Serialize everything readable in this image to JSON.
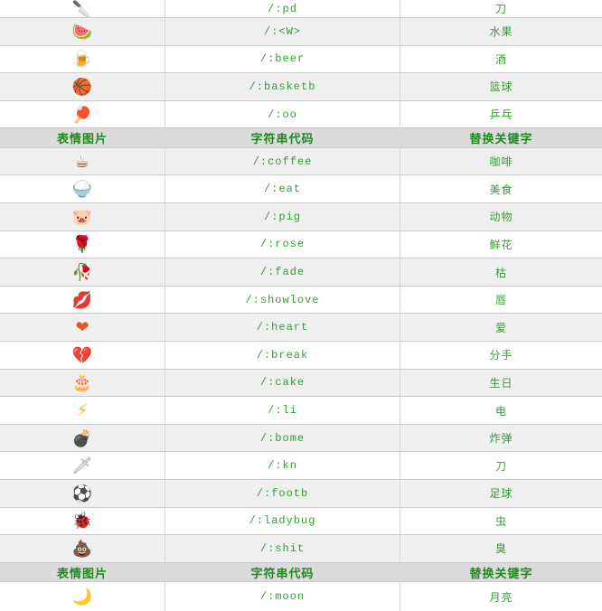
{
  "colors": {
    "row_bg": "#ffffff",
    "row_alt_bg": "#efefef",
    "header_bg": "#dbdbdb",
    "border": "#cbcbcb",
    "vertical_border": "#d9d9d9",
    "header_green": "#1f8b1f",
    "code_green": "#3a9a3a"
  },
  "table": {
    "column_headers": [
      "表情图片",
      "字符串代码",
      "替换关键字"
    ],
    "rows": [
      {
        "type": "item",
        "icon": "cleaver-icon",
        "glyph": "🔪",
        "icon_color": "#51626f",
        "code": "/:pd",
        "keyword": "刀"
      },
      {
        "type": "item",
        "icon": "watermelon-icon",
        "glyph": "🍉",
        "icon_color": "#e0454d",
        "code": "/:<W>",
        "keyword": "水果"
      },
      {
        "type": "item",
        "icon": "beer-icon",
        "glyph": "🍺",
        "icon_color": "#3f7fd6",
        "code": "/:beer",
        "keyword": "酒"
      },
      {
        "type": "item",
        "icon": "basketball-icon",
        "glyph": "🏀",
        "icon_color": "#e8922a",
        "code": "/:basketb",
        "keyword": "篮球"
      },
      {
        "type": "item",
        "icon": "pingpong-icon",
        "glyph": "🏓",
        "icon_color": "#e86c1f",
        "code": "/:oo",
        "keyword": "乒乓"
      },
      {
        "type": "header"
      },
      {
        "type": "item",
        "icon": "coffee-icon",
        "glyph": "☕",
        "icon_color": "#8a5a3b",
        "code": "/:coffee",
        "keyword": "咖啡"
      },
      {
        "type": "item",
        "icon": "rice-bowl-icon",
        "glyph": "🍚",
        "icon_color": "#e8922a",
        "code": "/:eat",
        "keyword": "美食"
      },
      {
        "type": "item",
        "icon": "pig-icon",
        "glyph": "🐷",
        "icon_color": "#eda184",
        "code": "/:pig",
        "keyword": "动物"
      },
      {
        "type": "item",
        "icon": "rose-icon",
        "glyph": "🌹",
        "icon_color": "#cc2233",
        "code": "/:rose",
        "keyword": "鲜花"
      },
      {
        "type": "item",
        "icon": "wilted-rose-icon",
        "glyph": "🥀",
        "icon_color": "#b03a3a",
        "code": "/:fade",
        "keyword": "枯"
      },
      {
        "type": "item",
        "icon": "lips-icon",
        "glyph": "💋",
        "icon_color": "#cc2233",
        "code": "/:showlove",
        "keyword": "唇"
      },
      {
        "type": "item",
        "icon": "heart-icon",
        "glyph": "❤",
        "icon_color": "#e8541b",
        "code": "/:heart",
        "keyword": "爱"
      },
      {
        "type": "item",
        "icon": "broken-heart-icon",
        "glyph": "💔",
        "icon_color": "#e8541b",
        "code": "/:break",
        "keyword": "分手"
      },
      {
        "type": "item",
        "icon": "cake-icon",
        "glyph": "🎂",
        "icon_color": "#e8a020",
        "code": "/:cake",
        "keyword": "生日"
      },
      {
        "type": "item",
        "icon": "lightning-icon",
        "glyph": "⚡",
        "icon_color": "#f0b81d",
        "code": "/:li",
        "keyword": "电"
      },
      {
        "type": "item",
        "icon": "bomb-icon",
        "glyph": "💣",
        "icon_color": "#222222",
        "code": "/:bome",
        "keyword": "炸弹"
      },
      {
        "type": "item",
        "icon": "sword-icon",
        "glyph": "🗡",
        "icon_color": "#8a98a6",
        "code": "/:kn",
        "keyword": "刀"
      },
      {
        "type": "item",
        "icon": "soccer-ball-icon",
        "glyph": "⚽",
        "icon_color": "#2f2f2f",
        "code": "/:footb",
        "keyword": "足球"
      },
      {
        "type": "item",
        "icon": "ladybug-icon",
        "glyph": "🐞",
        "icon_color": "#c42222",
        "code": "/:ladybug",
        "keyword": "虫"
      },
      {
        "type": "item",
        "icon": "poop-icon",
        "glyph": "💩",
        "icon_color": "#e8920a",
        "code": "/:shit",
        "keyword": "臭"
      },
      {
        "type": "header"
      },
      {
        "type": "item",
        "icon": "moon-icon",
        "glyph": "🌙",
        "icon_color": "#2a4fc0",
        "code": "/:moon",
        "keyword": "月亮"
      }
    ]
  }
}
